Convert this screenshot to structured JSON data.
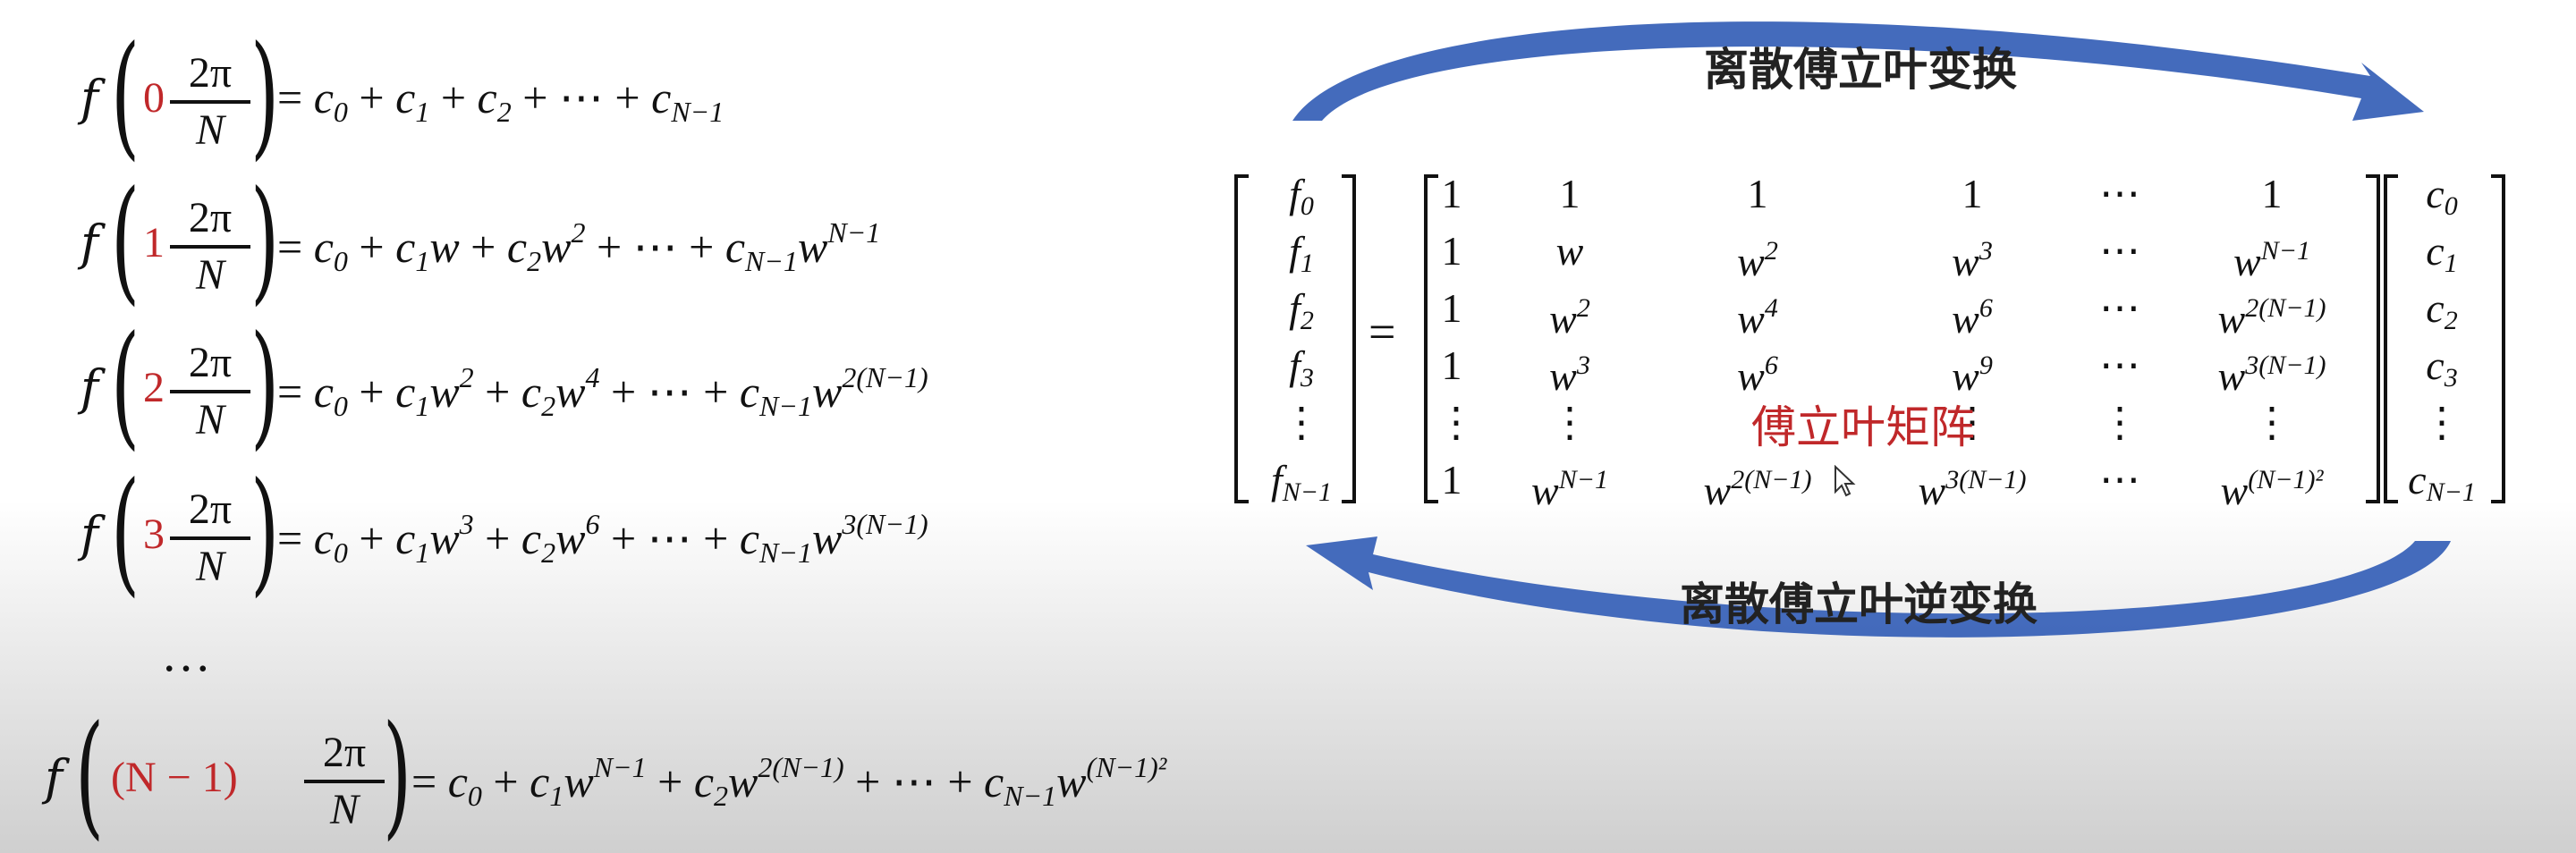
{
  "equations": [
    {
      "coef": "0"
    },
    {
      "coef": "1"
    },
    {
      "coef": "2"
    },
    {
      "coef": "3"
    },
    {
      "coef": "(N − 1)"
    }
  ],
  "ellipsis": "…",
  "labels": {
    "dft": "离散傅立叶变换",
    "idft": "离散傅立叶逆变换",
    "matrix": "傅立叶矩阵"
  },
  "colors": {
    "accent_red": "#c0282a",
    "arrow_blue": "#3a63b8"
  },
  "icons": [
    "mouse-pointer-icon"
  ]
}
